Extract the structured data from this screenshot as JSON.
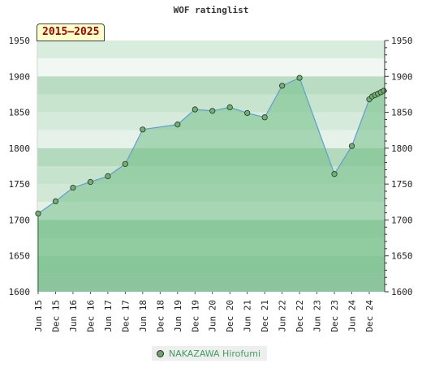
{
  "title": "WOF ratinglist",
  "range_badge": "2015–2025",
  "colors": {
    "area_fill": "#72bf88",
    "line": "#5f9fcf",
    "marker_fill": "#72b072",
    "marker_stroke": "#223322",
    "band_dark": "#9fd0ad",
    "band_light": "#d8ecdd",
    "legend_text": "#3f9f5f"
  },
  "chart_data": {
    "type": "area",
    "title": "WOF ratinglist",
    "ylim": [
      1600,
      1950
    ],
    "y_ticks": [
      1600,
      1650,
      1700,
      1750,
      1800,
      1850,
      1900,
      1950
    ],
    "x_ticks": [
      "Jun 15",
      "Dec 15",
      "Jun 16",
      "Dec 16",
      "Jun 17",
      "Dec 17",
      "Jun 18",
      "Dec 18",
      "Jun 19",
      "Dec 19",
      "Jun 20",
      "Dec 20",
      "Jun 21",
      "Dec 21",
      "Jun 22",
      "Dec 22",
      "Jun 23",
      "Dec 23",
      "Jun 24",
      "Dec 24"
    ],
    "legend_position": "bottom-center",
    "series": [
      {
        "name": "NAKAZAWA Hirofumi",
        "points": [
          {
            "date": "2015-06",
            "value": 1709
          },
          {
            "date": "2015-12",
            "value": 1726
          },
          {
            "date": "2016-06",
            "value": 1745
          },
          {
            "date": "2016-12",
            "value": 1753
          },
          {
            "date": "2017-06",
            "value": 1761
          },
          {
            "date": "2017-12",
            "value": 1778
          },
          {
            "date": "2018-06",
            "value": 1826
          },
          {
            "date": "2019-06",
            "value": 1833
          },
          {
            "date": "2019-12",
            "value": 1854
          },
          {
            "date": "2020-06",
            "value": 1852
          },
          {
            "date": "2020-12",
            "value": 1857
          },
          {
            "date": "2021-06",
            "value": 1849
          },
          {
            "date": "2021-12",
            "value": 1843
          },
          {
            "date": "2022-06",
            "value": 1887
          },
          {
            "date": "2022-12",
            "value": 1898
          },
          {
            "date": "2023-12",
            "value": 1764
          },
          {
            "date": "2024-06",
            "value": 1803
          },
          {
            "date": "2024-12",
            "value": 1868
          },
          {
            "date": "2025-01",
            "value": 1872
          },
          {
            "date": "2025-02",
            "value": 1874
          },
          {
            "date": "2025-03",
            "value": 1876
          },
          {
            "date": "2025-04",
            "value": 1878
          },
          {
            "date": "2025-05",
            "value": 1880
          }
        ]
      }
    ]
  }
}
